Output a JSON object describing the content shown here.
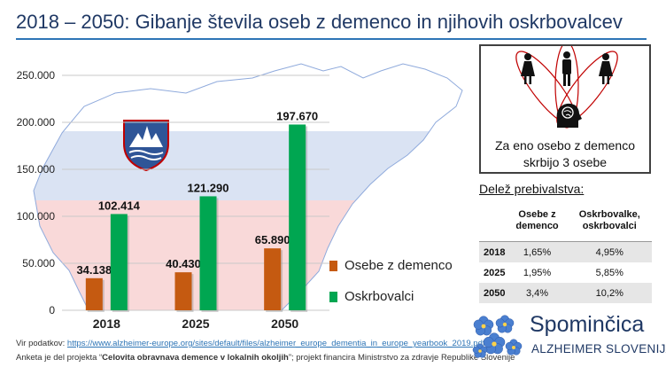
{
  "title": "2018 – 2050: Gibanje števila oseb z demenco in njihovih oskrbovalcev",
  "chart_data": {
    "type": "bar",
    "categories": [
      "2018",
      "2025",
      "2050"
    ],
    "series": [
      {
        "name": "Osebe z demenco",
        "color": "#c55a11",
        "values": [
          34138,
          40430,
          65890
        ],
        "labels": [
          "34.138",
          "40.430",
          "65.890"
        ]
      },
      {
        "name": "Oskrbovalci",
        "color": "#00a651",
        "values": [
          102414,
          121290,
          197670
        ],
        "labels": [
          "102.414",
          "121.290",
          "197.670"
        ]
      }
    ],
    "ylim": [
      0,
      250000
    ],
    "yticks": [
      0,
      50000,
      100000,
      150000,
      200000,
      250000
    ],
    "ytick_labels": [
      "0",
      "50.000",
      "100.000",
      "150.000",
      "200.000",
      "250.000"
    ],
    "grid": true,
    "legend": "right"
  },
  "caregiver_box": {
    "line1": "Za eno osebo z demenco",
    "line2": "skrbijo 3 osebe"
  },
  "share": {
    "title": "Delež prebivalstva:",
    "headers": [
      "",
      "Osebe z demenco",
      "Oskrbovalke, oskrbovalci"
    ],
    "rows": [
      {
        "year": "2018",
        "dementia": "1,65%",
        "caregivers": "4,95%"
      },
      {
        "year": "2025",
        "dementia": "1,95%",
        "caregivers": "5,85%"
      },
      {
        "year": "2050",
        "dementia": "3,4%",
        "caregivers": "10,2%"
      }
    ]
  },
  "source": {
    "label": "Vir podatkov: ",
    "url": "https://www.alzheimer-europe.org/sites/default/files/alzheimer_europe_dementia_in_europe_yearbook_2019.pdf",
    "note_prefix": "Anketa je del projekta “",
    "note_project": "Celovita obravnava demence v lokalnih okoljih",
    "note_suffix": "”;  projekt financira Ministrstvo za zdravje Republike Slovenije"
  },
  "logo": {
    "name": "Spominčica",
    "subtitle": "ALZHEIMER SLOVENIJA"
  },
  "colors": {
    "title": "#1f3864",
    "accent": "#2e75b6",
    "flag_blue": "#dae3f3",
    "flag_red": "#f9d9d9"
  }
}
